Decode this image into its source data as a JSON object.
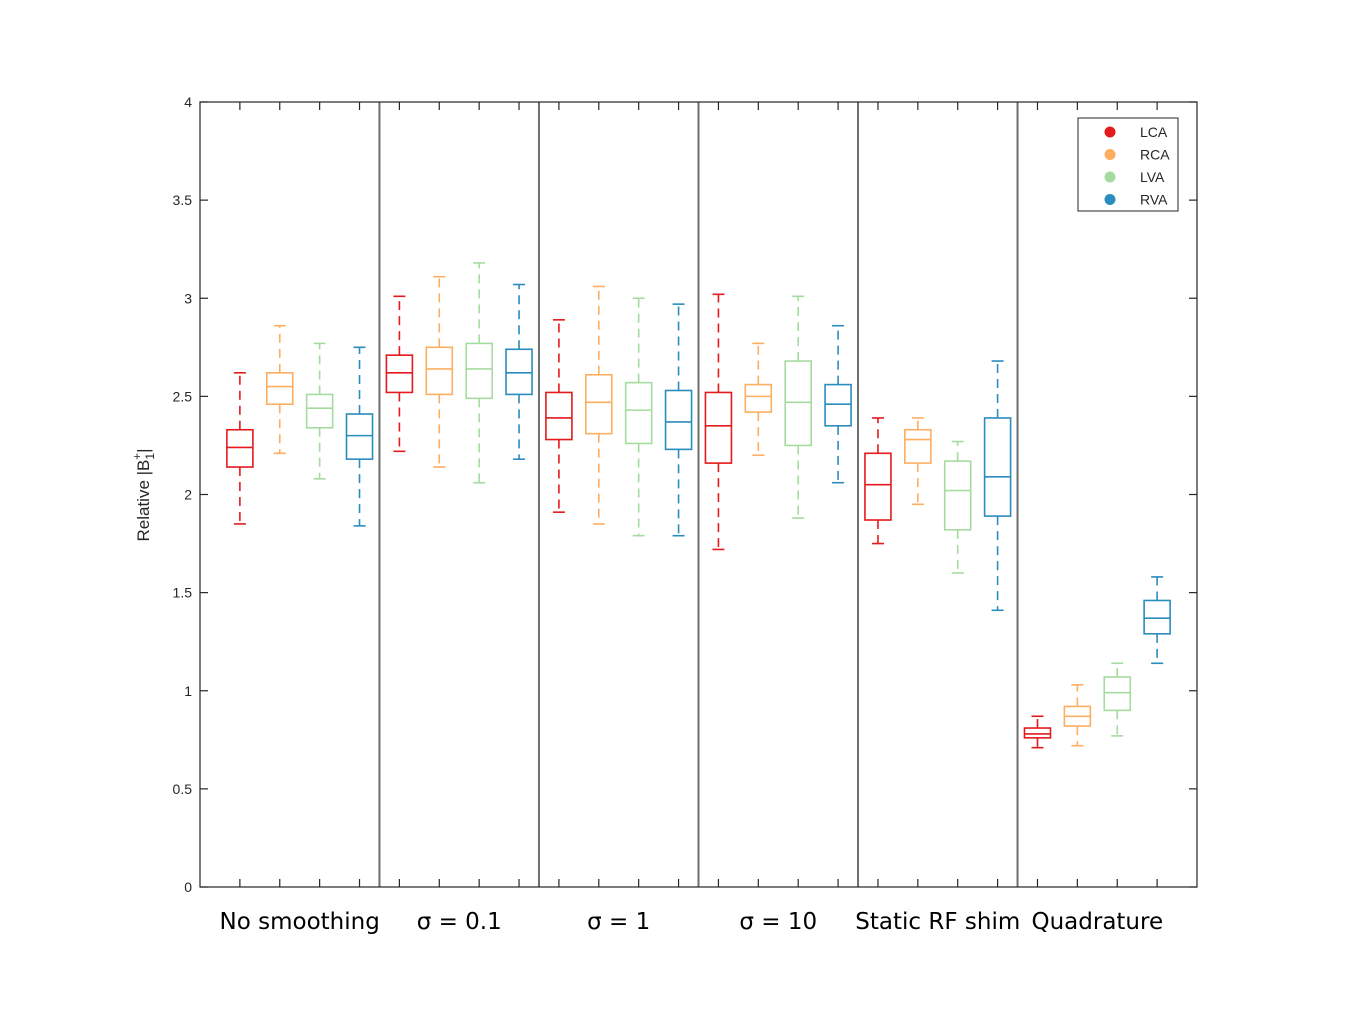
{
  "chart_data": {
    "type": "box",
    "ylabel": "Relative |B1+|",
    "ylabel_main": "Relative |B",
    "ylabel_sub": "1",
    "ylabel_sup": "+",
    "ylabel_end": "|",
    "ylim": [
      0,
      4
    ],
    "yticks": [
      0,
      0.5,
      1,
      1.5,
      2,
      2.5,
      3,
      3.5,
      4
    ],
    "ytick_labels": [
      "0",
      "0.5",
      "1",
      "1.5",
      "2",
      "2.5",
      "3",
      "3.5",
      "4"
    ],
    "grid": false,
    "legend_position": "top-right",
    "series": [
      {
        "name": "LCA",
        "color": "#e41a1c"
      },
      {
        "name": "RCA",
        "color": "#fdae61"
      },
      {
        "name": "LVA",
        "color": "#a6dba0"
      },
      {
        "name": "RVA",
        "color": "#2b8cbe"
      }
    ],
    "groups": [
      {
        "label": "No smoothing",
        "boxes": [
          {
            "series": "LCA",
            "whisker_low": 1.85,
            "q1": 2.14,
            "median": 2.24,
            "q3": 2.33,
            "whisker_high": 2.62
          },
          {
            "series": "RCA",
            "whisker_low": 2.21,
            "q1": 2.46,
            "median": 2.55,
            "q3": 2.62,
            "whisker_high": 2.86
          },
          {
            "series": "LVA",
            "whisker_low": 2.08,
            "q1": 2.34,
            "median": 2.44,
            "q3": 2.51,
            "whisker_high": 2.77
          },
          {
            "series": "RVA",
            "whisker_low": 1.84,
            "q1": 2.18,
            "median": 2.3,
            "q3": 2.41,
            "whisker_high": 2.75
          }
        ]
      },
      {
        "label": "σ = 0.1",
        "boxes": [
          {
            "series": "LCA",
            "whisker_low": 2.22,
            "q1": 2.52,
            "median": 2.62,
            "q3": 2.71,
            "whisker_high": 3.01
          },
          {
            "series": "RCA",
            "whisker_low": 2.14,
            "q1": 2.51,
            "median": 2.64,
            "q3": 2.75,
            "whisker_high": 3.11
          },
          {
            "series": "LVA",
            "whisker_low": 2.06,
            "q1": 2.49,
            "median": 2.64,
            "q3": 2.77,
            "whisker_high": 3.18
          },
          {
            "series": "RVA",
            "whisker_low": 2.18,
            "q1": 2.51,
            "median": 2.62,
            "q3": 2.74,
            "whisker_high": 3.07
          }
        ]
      },
      {
        "label": "σ = 1",
        "boxes": [
          {
            "series": "LCA",
            "whisker_low": 1.91,
            "q1": 2.28,
            "median": 2.39,
            "q3": 2.52,
            "whisker_high": 2.89
          },
          {
            "series": "RCA",
            "whisker_low": 1.85,
            "q1": 2.31,
            "median": 2.47,
            "q3": 2.61,
            "whisker_high": 3.06
          },
          {
            "series": "LVA",
            "whisker_low": 1.79,
            "q1": 2.26,
            "median": 2.43,
            "q3": 2.57,
            "whisker_high": 3.0
          },
          {
            "series": "RVA",
            "whisker_low": 1.79,
            "q1": 2.23,
            "median": 2.37,
            "q3": 2.53,
            "whisker_high": 2.97
          }
        ]
      },
      {
        "label": "σ = 10",
        "boxes": [
          {
            "series": "LCA",
            "whisker_low": 1.72,
            "q1": 2.16,
            "median": 2.35,
            "q3": 2.52,
            "whisker_high": 3.02
          },
          {
            "series": "RCA",
            "whisker_low": 2.2,
            "q1": 2.42,
            "median": 2.5,
            "q3": 2.56,
            "whisker_high": 2.77
          },
          {
            "series": "LVA",
            "whisker_low": 1.88,
            "q1": 2.25,
            "median": 2.47,
            "q3": 2.68,
            "whisker_high": 3.01
          },
          {
            "series": "RVA",
            "whisker_low": 2.06,
            "q1": 2.35,
            "median": 2.46,
            "q3": 2.56,
            "whisker_high": 2.86
          }
        ]
      },
      {
        "label": "Static RF shim",
        "boxes": [
          {
            "series": "LCA",
            "whisker_low": 1.75,
            "q1": 1.87,
            "median": 2.05,
            "q3": 2.21,
            "whisker_high": 2.39
          },
          {
            "series": "RCA",
            "whisker_low": 1.95,
            "q1": 2.16,
            "median": 2.28,
            "q3": 2.33,
            "whisker_high": 2.39
          },
          {
            "series": "LVA",
            "whisker_low": 1.6,
            "q1": 1.82,
            "median": 2.02,
            "q3": 2.17,
            "whisker_high": 2.27
          },
          {
            "series": "RVA",
            "whisker_low": 1.41,
            "q1": 1.89,
            "median": 2.09,
            "q3": 2.39,
            "whisker_high": 2.68
          }
        ]
      },
      {
        "label": "Quadrature",
        "boxes": [
          {
            "series": "LCA",
            "whisker_low": 0.71,
            "q1": 0.76,
            "median": 0.78,
            "q3": 0.81,
            "whisker_high": 0.87
          },
          {
            "series": "RCA",
            "whisker_low": 0.72,
            "q1": 0.82,
            "median": 0.87,
            "q3": 0.92,
            "whisker_high": 1.03
          },
          {
            "series": "LVA",
            "whisker_low": 0.77,
            "q1": 0.9,
            "median": 0.99,
            "q3": 1.07,
            "whisker_high": 1.14
          },
          {
            "series": "RVA",
            "whisker_low": 1.14,
            "q1": 1.29,
            "median": 1.37,
            "q3": 1.46,
            "whisker_high": 1.58
          }
        ]
      }
    ]
  }
}
